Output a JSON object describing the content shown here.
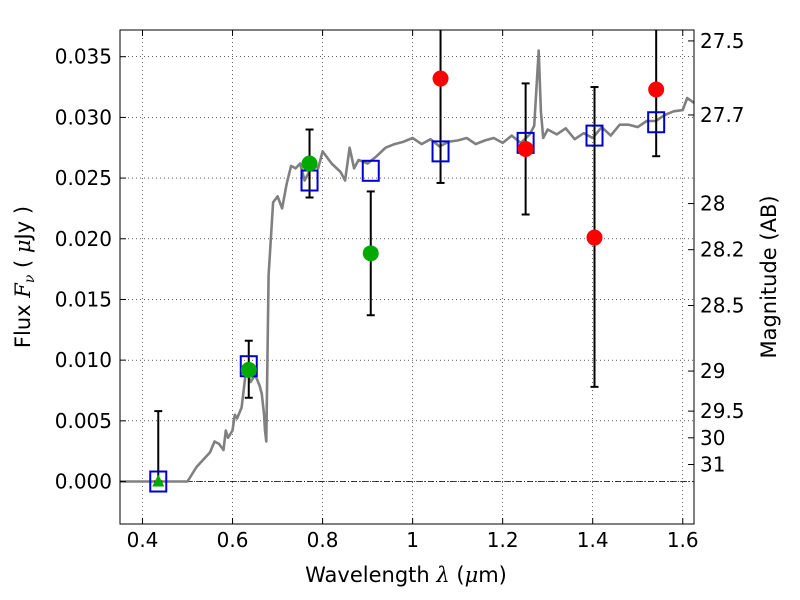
{
  "chart_data": {
    "type": "scatter",
    "xlabel_parts": [
      "Wavelength  ",
      "λ",
      " (",
      "μ",
      "m)"
    ],
    "ylabel_parts": [
      "Flux  ",
      "F",
      "ν",
      "  ( ",
      "μ",
      "Jy )"
    ],
    "y2label": "Magnitude (AB)",
    "xlim": [
      0.35,
      1.625
    ],
    "ylim": [
      -0.0035,
      0.0372
    ],
    "grid": true,
    "x_ticks": [
      0.4,
      0.6,
      0.8,
      1.0,
      1.2,
      1.4,
      1.6
    ],
    "x_tick_labels": [
      "0.4",
      "0.6",
      "0.8",
      "1",
      "1.2",
      "1.4",
      "1.6"
    ],
    "y_ticks": [
      0.0,
      0.005,
      0.01,
      0.015,
      0.02,
      0.025,
      0.03,
      0.035
    ],
    "y_tick_labels": [
      "0.000",
      "0.005",
      "0.010",
      "0.015",
      "0.020",
      "0.025",
      "0.030",
      "0.035"
    ],
    "y2_ticks": [
      {
        "label": "27.5",
        "flux": 0.0363
      },
      {
        "label": "27.7",
        "flux": 0.0302
      },
      {
        "label": "28",
        "flux": 0.0229
      },
      {
        "label": "28.2",
        "flux": 0.0191
      },
      {
        "label": "28.5",
        "flux": 0.0145
      },
      {
        "label": "29",
        "flux": 0.0091
      },
      {
        "label": "29.5",
        "flux": 0.0058
      },
      {
        "label": "30",
        "flux": 0.0036
      },
      {
        "label": "31",
        "flux": 0.0014
      }
    ],
    "template_spectrum": {
      "color": "#808080",
      "x": [
        0.35,
        0.5,
        0.52,
        0.55,
        0.56,
        0.57,
        0.58,
        0.585,
        0.59,
        0.6,
        0.605,
        0.61,
        0.62,
        0.63,
        0.64,
        0.65,
        0.66,
        0.665,
        0.67,
        0.672,
        0.675,
        0.68,
        0.69,
        0.7,
        0.71,
        0.72,
        0.73,
        0.74,
        0.75,
        0.76,
        0.77,
        0.78,
        0.79,
        0.8,
        0.82,
        0.84,
        0.85,
        0.86,
        0.87,
        0.88,
        0.9,
        0.92,
        0.94,
        0.96,
        0.98,
        1.0,
        1.02,
        1.04,
        1.06,
        1.08,
        1.1,
        1.12,
        1.14,
        1.16,
        1.18,
        1.2,
        1.22,
        1.24,
        1.26,
        1.27,
        1.28,
        1.285,
        1.29,
        1.3,
        1.32,
        1.34,
        1.36,
        1.38,
        1.4,
        1.42,
        1.44,
        1.46,
        1.48,
        1.5,
        1.52,
        1.54,
        1.56,
        1.58,
        1.6,
        1.61,
        1.625
      ],
      "y": [
        0.0,
        0.0,
        0.0012,
        0.0024,
        0.0033,
        0.0031,
        0.0026,
        0.0042,
        0.0036,
        0.0042,
        0.0055,
        0.0052,
        0.0061,
        0.0092,
        0.0082,
        0.0088,
        0.0079,
        0.0072,
        0.0055,
        0.0042,
        0.0033,
        0.017,
        0.023,
        0.0235,
        0.0225,
        0.0245,
        0.026,
        0.0258,
        0.0262,
        0.0248,
        0.0255,
        0.0262,
        0.0258,
        0.0272,
        0.0262,
        0.0255,
        0.0248,
        0.0275,
        0.0258,
        0.0265,
        0.0262,
        0.0268,
        0.0275,
        0.0278,
        0.028,
        0.0283,
        0.0278,
        0.0282,
        0.0276,
        0.028,
        0.0281,
        0.0283,
        0.0278,
        0.0281,
        0.0283,
        0.0279,
        0.0285,
        0.0279,
        0.0286,
        0.0293,
        0.0355,
        0.0305,
        0.0283,
        0.029,
        0.0286,
        0.0291,
        0.0282,
        0.0287,
        0.0283,
        0.0292,
        0.0285,
        0.0294,
        0.0294,
        0.0292,
        0.0297,
        0.0297,
        0.0302,
        0.0305,
        0.0306,
        0.0316,
        0.0312
      ]
    },
    "model_boxes": {
      "color": "#0000cc",
      "points": [
        {
          "x": 0.435,
          "y": 0.0
        },
        {
          "x": 0.636,
          "y": 0.0095
        },
        {
          "x": 0.771,
          "y": 0.0248
        },
        {
          "x": 0.907,
          "y": 0.0256
        },
        {
          "x": 1.062,
          "y": 0.0272
        },
        {
          "x": 1.251,
          "y": 0.0279
        },
        {
          "x": 1.404,
          "y": 0.0285
        },
        {
          "x": 1.541,
          "y": 0.0296
        }
      ]
    },
    "observations": [
      {
        "x": 0.435,
        "y": 0.0,
        "err_low": 0.0,
        "err_high": 0.0058,
        "marker": "triangle",
        "color": "#00aa00"
      },
      {
        "x": 0.636,
        "y": 0.0092,
        "err_low": 0.0069,
        "err_high": 0.0116,
        "marker": "circle",
        "color": "#00aa00"
      },
      {
        "x": 0.771,
        "y": 0.0262,
        "err_low": 0.0234,
        "err_high": 0.029,
        "marker": "circle",
        "color": "#00aa00"
      },
      {
        "x": 0.907,
        "y": 0.0188,
        "err_low": 0.0137,
        "err_high": 0.0239,
        "marker": "circle",
        "color": "#00aa00"
      },
      {
        "x": 1.062,
        "y": 0.0332,
        "err_low": 0.0246,
        "err_high": 0.0372,
        "marker": "circle",
        "color": "#ff0000"
      },
      {
        "x": 1.251,
        "y": 0.0274,
        "err_low": 0.022,
        "err_high": 0.0328,
        "marker": "circle",
        "color": "#ff0000"
      },
      {
        "x": 1.404,
        "y": 0.0201,
        "err_low": 0.0078,
        "err_high": 0.0325,
        "marker": "circle",
        "color": "#ff0000"
      },
      {
        "x": 1.541,
        "y": 0.0323,
        "err_low": 0.0268,
        "err_high": 0.0372,
        "marker": "circle",
        "color": "#ff0000"
      }
    ]
  }
}
